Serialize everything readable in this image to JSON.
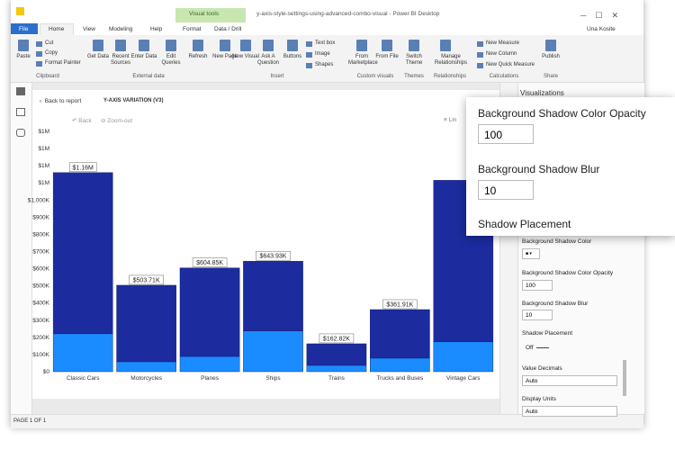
{
  "window": {
    "title": "y-axis-style-settings-using-advanced-combo-visual - Power BI Desktop",
    "context_tab": "Visual tools",
    "user": "Una Kosite"
  },
  "tabs": [
    "File",
    "Home",
    "View",
    "Modeling",
    "Help",
    "Format",
    "Data / Drill"
  ],
  "ribbon": {
    "clipboard": {
      "label": "Clipboard",
      "paste": "Paste",
      "cut": "Cut",
      "copy": "Copy",
      "format_painter": "Format Painter"
    },
    "external": {
      "label": "External data",
      "get_data": "Get Data",
      "recent": "Recent Sources",
      "enter": "Enter Data",
      "edit": "Edit Queries",
      "refresh": "Refresh"
    },
    "insert": {
      "label": "Insert",
      "new_page": "New Page",
      "new_visual": "New Visual",
      "ask": "Ask A Question",
      "buttons": "Buttons",
      "text_box": "Text box",
      "image": "Image",
      "shapes": "Shapes"
    },
    "custom": {
      "label": "Custom visuals",
      "marketplace": "From Marketplace",
      "file": "From File"
    },
    "themes": {
      "label": "Themes",
      "switch": "Switch Theme"
    },
    "relationships": {
      "label": "Relationships",
      "manage": "Manage Relationships"
    },
    "calculations": {
      "label": "Calculations",
      "measure": "New Measure",
      "column": "New Column",
      "quick": "New Quick Measure"
    },
    "share": {
      "label": "Share",
      "publish": "Publish"
    }
  },
  "report": {
    "back": "Back to report",
    "visual_title": "Y-AXIS VARIATION (V3)",
    "drill_back": "Back",
    "zoom_out": "Zoom-out",
    "lin": "Lin",
    "page": "PAGE 1 OF 1"
  },
  "chart_data": {
    "type": "bar",
    "stacked": true,
    "categories": [
      "Classic Cars",
      "Motorcycles",
      "Planes",
      "Ships",
      "Trains",
      "Trucks and Buses",
      "Vintage Cars"
    ],
    "series": [
      {
        "color": "#1a8cff",
        "values": [
          221000,
          58000,
          89000,
          237000,
          37000,
          79000,
          174000
        ]
      },
      {
        "color": "#1c2b9e",
        "values": [
          939000,
          445710,
          515850,
          406930,
          125820,
          282910,
          941000
        ]
      }
    ],
    "totals": [
      1160000,
      503710,
      604850,
      643930,
      162820,
      361910,
      1115000
    ],
    "total_labels": [
      "$1.16M",
      "$503.71K",
      "$604.85K",
      "$643.93K",
      "$162.82K",
      "$361.91K",
      null
    ],
    "ylim": [
      0,
      1400000
    ],
    "yticks": [
      {
        "value": 0,
        "label": "$0"
      },
      {
        "value": 100000,
        "label": "$100K"
      },
      {
        "value": 200000,
        "label": "$200K"
      },
      {
        "value": 300000,
        "label": "$300K"
      },
      {
        "value": 400000,
        "label": "$400K"
      },
      {
        "value": 500000,
        "label": "$500K"
      },
      {
        "value": 600000,
        "label": "$600K"
      },
      {
        "value": 700000,
        "label": "$700K"
      },
      {
        "value": 800000,
        "label": "$800K"
      },
      {
        "value": 900000,
        "label": "$900K"
      },
      {
        "value": 1000000,
        "label": "$1,000K"
      },
      {
        "value": 1100000,
        "label": "$1M"
      },
      {
        "value": 1200000,
        "label": "$1M"
      },
      {
        "value": 1300000,
        "label": "$1M"
      },
      {
        "value": 1400000,
        "label": "$1M"
      }
    ],
    "grid": false
  },
  "pane": {
    "title": "Visualizations",
    "shadow_color": "Background Shadow Color",
    "opacity": "Background Shadow Color Opacity",
    "opacity_value": 100,
    "blur": "Background Shadow Blur",
    "blur_value": 10,
    "placement": "Shadow Placement",
    "toggle": "Off",
    "decimals": "Value Decimals",
    "decimals_value": "Auto",
    "units": "Display Units",
    "units_value": "Auto"
  },
  "popup": {
    "opacity": "Background Shadow Color Opacity",
    "opacity_value": 100,
    "blur": "Background Shadow Blur",
    "blur_value": 10,
    "placement": "Shadow Placement"
  }
}
